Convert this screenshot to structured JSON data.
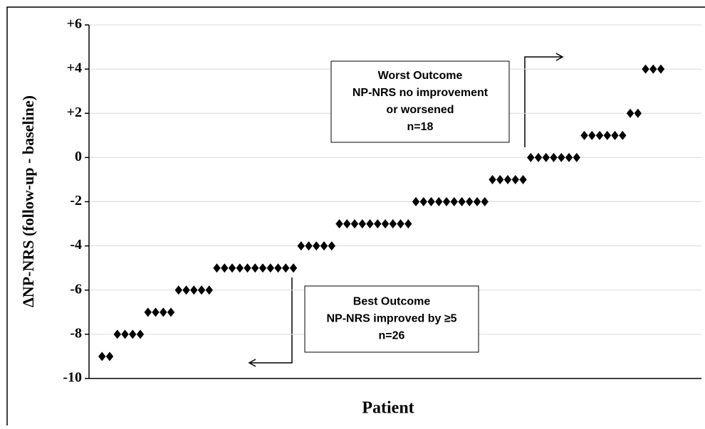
{
  "chart_data": {
    "type": "scatter",
    "x_label": "Patient",
    "y_label": "ΔNP-NRS (follow-up - baseline)",
    "color": "#000000",
    "grid": true,
    "xlim": [
      -0.7,
      79.3
    ],
    "ylim": [
      -10,
      6
    ],
    "yticks": [
      {
        "value": 6,
        "label": "+6"
      },
      {
        "value": 4,
        "label": "+4"
      },
      {
        "value": 2,
        "label": "+2"
      },
      0,
      -2,
      -4,
      -6,
      -8,
      -10
    ],
    "x": [
      1,
      2,
      3,
      4,
      5,
      6,
      7,
      8,
      9,
      10,
      11,
      12,
      13,
      14,
      15,
      16,
      17,
      18,
      19,
      20,
      21,
      22,
      23,
      24,
      25,
      26,
      27,
      28,
      29,
      30,
      31,
      32,
      33,
      34,
      35,
      36,
      37,
      38,
      39,
      40,
      41,
      42,
      43,
      44,
      45,
      46,
      47,
      48,
      49,
      50,
      51,
      52,
      53,
      54,
      55,
      56,
      57,
      58,
      59,
      60,
      61,
      62,
      63,
      64,
      65,
      66,
      67,
      68,
      69,
      70,
      71,
      72,
      73,
      74
    ],
    "values": [
      -9,
      -9,
      -8,
      -8,
      -8,
      -8,
      -7,
      -7,
      -7,
      -7,
      -6,
      -6,
      -6,
      -6,
      -6,
      -5,
      -5,
      -5,
      -5,
      -5,
      -5,
      -5,
      -5,
      -5,
      -5,
      -5,
      -4,
      -4,
      -4,
      -4,
      -4,
      -3,
      -3,
      -3,
      -3,
      -3,
      -3,
      -3,
      -3,
      -3,
      -3,
      -2,
      -2,
      -2,
      -2,
      -2,
      -2,
      -2,
      -2,
      -2,
      -2,
      -1,
      -1,
      -1,
      -1,
      -1,
      0,
      0,
      0,
      0,
      0,
      0,
      0,
      1,
      1,
      1,
      1,
      1,
      1,
      2,
      2,
      4,
      4,
      4
    ],
    "annotations": [
      {
        "lines": [
          "Worst Outcome",
          "NP-NRS no improvement",
          "or worsened",
          "n=18"
        ]
      },
      {
        "lines": [
          "Best Outcome",
          "NP-NRS improved by ≥5",
          "n=26"
        ]
      }
    ]
  }
}
